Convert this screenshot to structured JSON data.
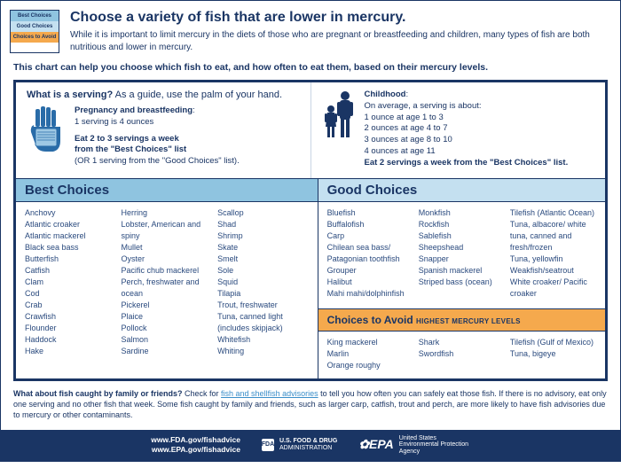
{
  "colors": {
    "navy": "#1a3564",
    "best_bg": "#8fc4e0",
    "good_bg": "#c4e0f0",
    "avoid_bg": "#f5a94d",
    "link": "#3a8ec9",
    "text_body": "#2a4a7e",
    "white": "#ffffff"
  },
  "legend": {
    "best": "Best Choices",
    "good": "Good Choices",
    "avoid": "Choices to Avoid"
  },
  "header": {
    "title": "Choose a variety of fish that are lower in mercury.",
    "sub": "While it is important to limit mercury in the diets of those who are pregnant or breastfeeding and children, many types of fish are both nutritious and lower in mercury."
  },
  "intro": "This chart can help you choose which fish to eat, and how often to eat them, based on their mercury levels.",
  "serving": {
    "q_bold": "What is a serving?",
    "q_rest": " As a guide, use the palm of your hand.",
    "preg_title": "Pregnancy and breastfeeding",
    "preg_line": "1 serving is 4 ounces",
    "preg_rec1": "Eat 2 to 3 servings a week",
    "preg_rec2": "from the \"Best Choices\" list",
    "preg_rec3": "(OR 1 serving from the \"Good Choices\" list).",
    "child_title": "Childhood",
    "child_line": "On average, a serving is about:",
    "child_1": "1 ounce at age 1 to 3",
    "child_2": "2 ounces at age 4 to 7",
    "child_3": "3 ounces at age 8 to 10",
    "child_4": "4 ounces at age 11",
    "child_rec": "Eat 2 servings a week from the \"Best Choices\" list."
  },
  "categories": {
    "best": {
      "title": "Best Choices",
      "cols": [
        [
          "Anchovy",
          "Atlantic croaker",
          "Atlantic mackerel",
          "Black sea bass",
          "Butterfish",
          "Catfish",
          "Clam",
          "Cod",
          "Crab",
          "Crawfish",
          "Flounder",
          "Haddock",
          "Hake"
        ],
        [
          "Herring",
          "Lobster, American and spiny",
          "Mullet",
          "Oyster",
          "Pacific chub mackerel",
          "Perch, freshwater and ocean",
          "Pickerel",
          "Plaice",
          "Pollock",
          "Salmon",
          "Sardine"
        ],
        [
          "Scallop",
          "Shad",
          "Shrimp",
          "Skate",
          "Smelt",
          "Sole",
          "Squid",
          "Tilapia",
          "Trout, freshwater",
          "Tuna, canned light (includes skipjack)",
          "Whitefish",
          "Whiting"
        ]
      ]
    },
    "good": {
      "title": "Good Choices",
      "cols": [
        [
          "Bluefish",
          "Buffalofish",
          "Carp",
          "Chilean sea bass/ Patagonian toothfish",
          "Grouper",
          "Halibut",
          "Mahi mahi/dolphinfish"
        ],
        [
          "Monkfish",
          "Rockfish",
          "Sablefish",
          "Sheepshead",
          "Snapper",
          "Spanish mackerel",
          "Striped bass (ocean)"
        ],
        [
          "Tilefish (Atlantic Ocean)",
          "Tuna, albacore/ white tuna, canned and fresh/frozen",
          "Tuna, yellowfin",
          "Weakfish/seatrout",
          "White croaker/ Pacific croaker"
        ]
      ]
    },
    "avoid": {
      "title": "Choices to Avoid",
      "subtitle": "HIGHEST MERCURY LEVELS",
      "cols": [
        [
          "King mackerel",
          "Marlin",
          "Orange roughy"
        ],
        [
          "Shark",
          "Swordfish"
        ],
        [
          "Tilefish (Gulf of Mexico)",
          "Tuna, bigeye"
        ]
      ]
    }
  },
  "footnote": {
    "q": "What about fish caught by family or friends?",
    "pre": " Check for ",
    "link": "fish and shellfish advisories",
    "post": " to tell you how often you can safely eat those fish. If there is no advisory, eat only one serving and no other fish that week. Some fish caught by family and friends, such as larger carp, catfish, trout and perch, are more likely to have fish advisories due to mercury or other contaminants."
  },
  "footer": {
    "url1": "www.FDA.gov/fishadvice",
    "url2": "www.EPA.gov/fishadvice",
    "fda1": "U.S. FOOD & DRUG",
    "fda2": "ADMINISTRATION",
    "epa": "EPA",
    "epa_sub": "United States Environmental Protection Agency"
  }
}
